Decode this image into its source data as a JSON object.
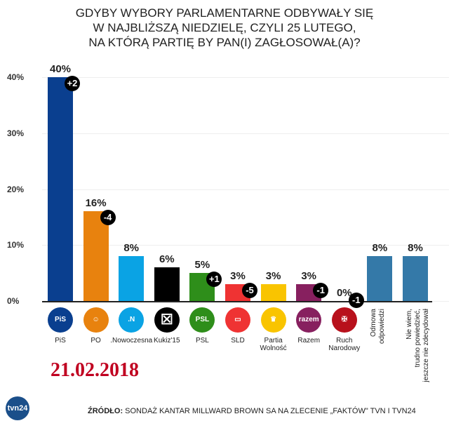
{
  "title_lines": [
    "GDYBY WYBORY PARLAMENTARNE ODBYWAŁY SIĘ",
    "W NAJBLIŻSZĄ NIEDZIELĘ, CZYLI 25 LUTEGO,",
    "NA KTÓRĄ PARTIĘ BY PAN(I) ZAGŁOSOWAŁ(A)?"
  ],
  "yticks": [
    "40%",
    "30%",
    "20%",
    "10%",
    "0%"
  ],
  "date": "21.02.2018",
  "source_bold": "ŹRÓDŁO:",
  "source_text": " SONDAŻ KANTAR MILLWARD BROWN SA NA ZLECENIE „FAKTÓW\" TVN I TVN24",
  "tvn_logo": "tvn24",
  "bars": [
    {
      "name": "PiS",
      "value": 40,
      "label": "40%",
      "change": "+2",
      "color": "#0a3f8f",
      "logo": "PiS"
    },
    {
      "name": "PO",
      "value": 16,
      "label": "16%",
      "change": "-4",
      "color": "#e8820e",
      "logo": "☺"
    },
    {
      "name": ".Nowoczesna",
      "value": 8,
      "label": "8%",
      "change": "",
      "color": "#0aa3e4",
      "logo": ".N"
    },
    {
      "name": "Kukiz'15",
      "value": 6,
      "label": "6%",
      "change": "",
      "color": "#000000",
      "logo": "☒"
    },
    {
      "name": "PSL",
      "value": 5,
      "label": "5%",
      "change": "+1",
      "color": "#2e8e1a",
      "logo": "PSL"
    },
    {
      "name": "SLD",
      "value": 3,
      "label": "3%",
      "change": "-5",
      "color": "#ef3333",
      "logo": "▭"
    },
    {
      "name": "Partia\nWolność",
      "value": 3,
      "label": "3%",
      "change": "",
      "color": "#f9c400",
      "logo": "♛"
    },
    {
      "name": "Razem",
      "value": 3,
      "label": "3%",
      "change": "-1",
      "color": "#87205f",
      "logo": "razem"
    },
    {
      "name": "Ruch\nNarodowy",
      "value": 0,
      "label": "0%",
      "change": "-1",
      "color": "#b8111c",
      "logo": "✠"
    },
    {
      "name": "Odmowa\nodpowiedzi",
      "value": 8,
      "label": "8%",
      "change": "",
      "color": "#3479a8",
      "logo": ""
    },
    {
      "name": "Nie wiem,\ntrudno powiedzieć,\njeszcze nie zdecydował",
      "value": 8,
      "label": "8%",
      "change": "",
      "color": "#3479a8",
      "logo": ""
    }
  ],
  "chart_data": {
    "type": "bar",
    "title": "GDYBY WYBORY PARLAMENTARNE ODBYWAŁY SIĘ W NAJBLIŻSZĄ NIEDZIELĘ, CZYLI 25 LUTEGO, NA KTÓRĄ PARTIĘ BY PAN(I) ZAGŁOSOWAŁ(A)?",
    "categories": [
      "PiS",
      "PO",
      ".Nowoczesna",
      "Kukiz'15",
      "PSL",
      "SLD",
      "Partia Wolność",
      "Razem",
      "Ruch Narodowy",
      "Odmowa odpowiedzi",
      "Nie wiem, trudno powiedzieć, jeszcze nie zdecydował"
    ],
    "values": [
      40,
      16,
      8,
      6,
      5,
      3,
      3,
      3,
      0,
      8,
      8
    ],
    "changes": [
      "+2",
      "-4",
      "",
      "",
      "+1",
      "-5",
      "",
      "-1",
      "-1",
      "",
      ""
    ],
    "xlabel": "",
    "ylabel": "",
    "yticks": [
      "0%",
      "10%",
      "20%",
      "30%",
      "40%"
    ],
    "ylim": [
      0,
      40
    ],
    "grid": true,
    "legend": "none",
    "annotations": [
      "21.02.2018",
      "ŹRÓDŁO: SONDAŻ KANTAR MILLWARD BROWN SA NA ZLECENIE „FAKTÓW\" TVN I TVN24"
    ]
  }
}
